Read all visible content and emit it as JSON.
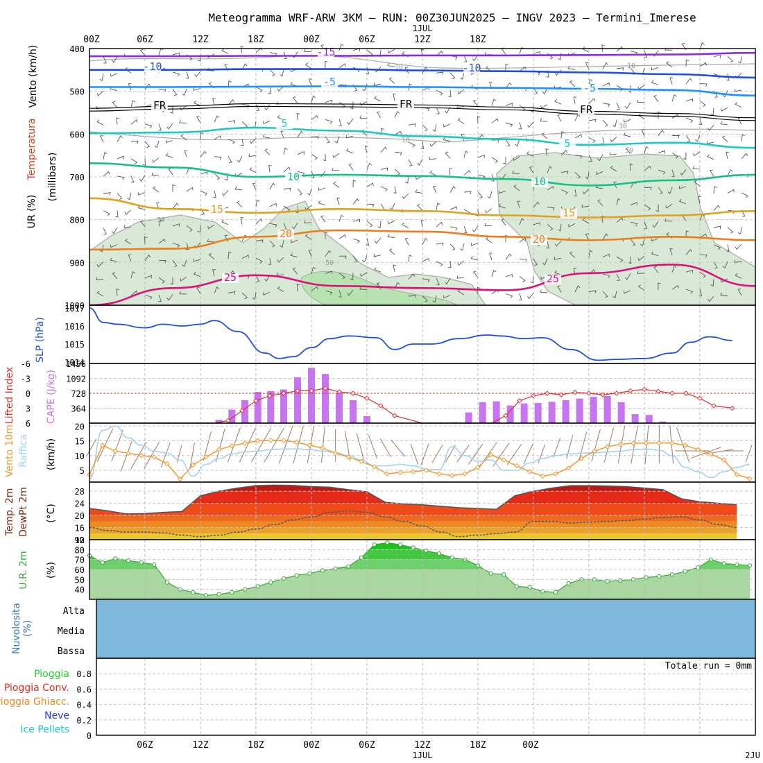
{
  "title": "Meteogramma WRF-ARW 3KM – RUN: 00Z30JUN2025 – INGV 2023 – Termini_Imerese",
  "colors": {
    "purple": "#8a2be2",
    "blue": "#1f4fe0",
    "skyblue": "#1e90ff",
    "cyan": "#1ec8c8",
    "teal": "#13c08a",
    "gold": "#e0a020",
    "orange": "#ee7d20",
    "magenta": "#e0107a",
    "rh_fill": "#d8ead6",
    "rh_fill_dark": "#b6e3b0",
    "cape": "#c674f0",
    "lifted": "#e03030",
    "gust": "#9fd3f0",
    "wind10": "#f29a2e",
    "arrow": "#a07a60",
    "cloud": "#80b8dc",
    "rh2m_light": "#9ad39a",
    "rh2m_dark": "#22cc22"
  },
  "chart_data": [
    {
      "type": "line",
      "panel": "upper-air",
      "ylabel_wind": "Vento (km/h)",
      "ylabel_temp": "Temperatura",
      "ylabel_rh": "UR (%)",
      "ylabel_units": "(millibars)",
      "ylim": [
        400,
        1000
      ],
      "yticks": [
        "400",
        "500",
        "600",
        "700",
        "800",
        "900",
        "1000"
      ],
      "x_hours": [
        0,
        72
      ],
      "xticks_top": [
        "00Z",
        "06Z",
        "12Z",
        "18Z",
        "00Z",
        "06Z",
        "12Z",
        "18Z"
      ],
      "day_label_top": "1JUL",
      "series": [
        {
          "name": "-15",
          "color": "purple",
          "x": [
            0,
            9,
            18,
            27,
            36,
            45,
            54,
            63,
            72
          ],
          "y": [
            418,
            418,
            417,
            417,
            416,
            416,
            415,
            414,
            410
          ]
        },
        {
          "name": "-10",
          "color": "blue",
          "x": [
            0,
            9,
            18,
            27,
            36,
            45,
            54,
            63,
            72
          ],
          "y": [
            450,
            450,
            448,
            448,
            451,
            453,
            456,
            460,
            468
          ]
        },
        {
          "name": "-5",
          "color": "skyblue",
          "x": [
            0,
            9,
            18,
            27,
            36,
            45,
            54,
            63,
            72
          ],
          "y": [
            490,
            490,
            489,
            488,
            490,
            492,
            494,
            497,
            510
          ]
        },
        {
          "name": "FR",
          "color": "black",
          "x": [
            0,
            9,
            18,
            27,
            36,
            45,
            54,
            63,
            72
          ],
          "y": [
            543,
            538,
            532,
            533,
            535,
            540,
            550,
            555,
            565
          ]
        },
        {
          "name": "5",
          "color": "cyan",
          "x": [
            0,
            9,
            18,
            27,
            36,
            45,
            54,
            63,
            72
          ],
          "y": [
            598,
            596,
            585,
            592,
            605,
            612,
            625,
            620,
            632
          ]
        },
        {
          "name": "10",
          "color": "teal",
          "x": [
            0,
            9,
            18,
            27,
            36,
            45,
            54,
            63,
            72
          ],
          "y": [
            668,
            678,
            700,
            695,
            698,
            705,
            720,
            708,
            695
          ]
        },
        {
          "name": "15",
          "color": "gold",
          "x": [
            0,
            9,
            18,
            27,
            36,
            45,
            54,
            63,
            72
          ],
          "y": [
            750,
            775,
            784,
            775,
            780,
            790,
            795,
            790,
            780
          ]
        },
        {
          "name": "20",
          "color": "orange",
          "x": [
            0,
            9,
            18,
            27,
            36,
            45,
            54,
            63,
            72
          ],
          "y": [
            870,
            868,
            840,
            825,
            828,
            840,
            848,
            840,
            848
          ]
        },
        {
          "name": "25",
          "color": "magenta",
          "x": [
            0,
            9,
            18,
            27,
            36,
            45,
            54,
            63,
            72
          ],
          "y": [
            1000,
            960,
            930,
            955,
            960,
            965,
            925,
            905,
            955
          ]
        }
      ],
      "contour_labels": [
        "-15",
        "-10",
        "-10",
        "-5",
        "-5",
        "FR",
        "FR",
        "FR",
        "5",
        "5",
        "10",
        "10",
        "15",
        "15",
        "20",
        "20",
        "25",
        "25"
      ],
      "rh_labels": [
        "10",
        "10",
        "10",
        "30",
        "30",
        "50",
        "50"
      ]
    },
    {
      "type": "line",
      "panel": "slp",
      "ylabel": "SLP (hPa)",
      "yticks": [
        "1014",
        "1015",
        "1016",
        "1017"
      ],
      "ylim": [
        1014,
        1017
      ],
      "x": [
        0,
        1.5,
        3,
        6,
        8,
        10,
        12,
        13.5,
        16,
        19,
        20.5,
        22,
        24,
        26,
        28,
        31,
        33,
        35,
        37,
        40,
        43,
        44.5,
        47,
        49,
        52,
        55,
        57,
        60,
        63,
        65,
        67,
        69.5
      ],
      "values": [
        1017.0,
        1016.2,
        1016.1,
        1015.9,
        1016.1,
        1016.0,
        1016.1,
        1016.3,
        1015.7,
        1014.5,
        1014.2,
        1014.3,
        1014.8,
        1015.3,
        1015.45,
        1015.35,
        1014.7,
        1015.0,
        1015.0,
        1015.3,
        1015.5,
        1015.45,
        1015.3,
        1015.35,
        1014.7,
        1014.1,
        1014.15,
        1014.2,
        1014.5,
        1015.1,
        1015.4,
        1015.2
      ]
    },
    {
      "type": "bar",
      "panel": "cape-lifted",
      "ylabel_li": "Lifted Index",
      "ylabel_cape": "CAPE (J/kg)",
      "li_ticks": [
        "-6",
        "-3",
        "0",
        "3",
        "6"
      ],
      "cape_ticks": [
        "1456",
        "1092",
        "728",
        "364"
      ],
      "cape_ylim": [
        0,
        1456
      ],
      "li_ylim": [
        -6,
        6
      ],
      "x": [
        0,
        3,
        6,
        9,
        12,
        13.5,
        15,
        16.5,
        18,
        19.5,
        21,
        22.5,
        24,
        25.5,
        27,
        28.5,
        30,
        31.5,
        33,
        34.5,
        36,
        37.5,
        39,
        40.5,
        42,
        43.5,
        45,
        46.5,
        48,
        49.5,
        51,
        52.5,
        54,
        55.5,
        57,
        58.5,
        60,
        61.5,
        63,
        64.5,
        66,
        67.5
      ],
      "cape": [
        0,
        0,
        0,
        0,
        0,
        0,
        0,
        0,
        0,
        0,
        0,
        0,
        0,
        0,
        0,
        0,
        0,
        0,
        0,
        0,
        0,
        0,
        0,
        0,
        0,
        0,
        0,
        250,
        510,
        530,
        430,
        480,
        490,
        520,
        560,
        600,
        640,
        660,
        510,
        220,
        200,
        40
      ],
      "cape_bars": {
        "x": [
          14,
          15.4,
          16.8,
          18.2,
          19.6,
          21,
          22.5,
          24,
          25.5,
          27,
          28.5,
          30,
          39.5,
          41,
          42.5,
          44,
          45.5,
          47,
          48.5,
          50,
          51.5,
          53,
          54.5,
          56,
          57.5,
          59,
          60.5,
          62
        ],
        "values": [
          80,
          330,
          560,
          760,
          780,
          820,
          1120,
          1350,
          1200,
          740,
          560,
          170,
          20,
          260,
          510,
          530,
          430,
          480,
          490,
          520,
          560,
          600,
          640,
          660,
          510,
          220,
          200,
          40
        ]
      },
      "lifted": {
        "x": [
          0,
          3,
          6,
          9,
          12,
          13.5,
          15,
          16.5,
          18,
          19.5,
          21,
          22.5,
          24,
          25.5,
          27,
          28.5,
          30,
          31.5,
          33,
          36,
          39,
          42,
          43.5,
          45,
          46.5,
          48,
          49.5,
          51,
          52.5,
          54,
          55.5,
          57,
          58.5,
          60,
          61.5,
          63,
          64.5,
          66,
          67.5,
          69.5
        ],
        "values": [
          6.0,
          6.0,
          6.5,
          7.0,
          7.0,
          6.5,
          5.5,
          3.5,
          1.5,
          0.5,
          0,
          -0.5,
          -0.5,
          -1.0,
          -0.3,
          0,
          1.0,
          2.5,
          4.5,
          7.0,
          8.0,
          8.0,
          7.0,
          4.5,
          1.5,
          0.5,
          0,
          0.3,
          -0.2,
          0,
          0.3,
          0,
          -0.5,
          -0.8,
          -0.4,
          0,
          0,
          1.0,
          2.5,
          3.0
        ]
      }
    },
    {
      "type": "line",
      "panel": "wind10",
      "ylabel_wind": "Vento 10m",
      "ylabel_gust": "Raffica",
      "ylabel_units": "(km/h)",
      "yticks": [
        "5",
        "10",
        "15",
        "20"
      ],
      "ylim": [
        1,
        21
      ],
      "x": [
        0,
        1.4,
        2.8,
        4.2,
        5.6,
        7,
        8.4,
        9.8,
        11.2,
        12.6,
        14,
        15.4,
        16.8,
        18.2,
        19.6,
        21,
        22.4,
        23.8,
        25.2,
        26.6,
        28,
        29.4,
        30.8,
        32.2,
        33.6,
        35,
        36.4,
        37.8,
        39.2,
        40.6,
        42,
        43.4,
        44.8,
        46.2,
        47.6,
        49,
        50.4,
        51.8,
        53.2,
        54.6,
        56,
        57.4,
        58.8,
        60.2,
        61.6,
        63,
        64.4,
        65.8,
        67.2,
        68.6,
        70,
        71.4
      ],
      "wind10": [
        3.5,
        13.5,
        11.5,
        10.8,
        10.0,
        9.5,
        7.2,
        2.0,
        6.8,
        9.5,
        12.0,
        13.3,
        14.2,
        15.0,
        15.2,
        15.1,
        14.5,
        13.5,
        12.5,
        10.8,
        9.5,
        8.0,
        6.2,
        3.8,
        4.3,
        4.5,
        5.0,
        3.8,
        3.2,
        3.8,
        6.0,
        10.3,
        8.5,
        6.5,
        4.5,
        3.0,
        3.8,
        5.8,
        9.0,
        11.5,
        13.0,
        13.8,
        14.2,
        14.2,
        14.3,
        14.2,
        13.5,
        12.0,
        10.5,
        8.5,
        3.5,
        2.2
      ],
      "gust": [
        2.0,
        18.5,
        20.0,
        16.0,
        13.5,
        11.5,
        10.8,
        8.5,
        3.0,
        7.0,
        9.0,
        10.5,
        11.2,
        11.5,
        12.0,
        12.2,
        12.3,
        12.0,
        11.5,
        11.0,
        10.0,
        8.5,
        6.5,
        6.5,
        7.0,
        6.5,
        5.3,
        5.2,
        13.0,
        10.0,
        8.0,
        8.5,
        5.0,
        5.0,
        7.5,
        9.0,
        10.0,
        10.5,
        10.8,
        11.0,
        11.2,
        11.5,
        12.0,
        12.2,
        11.8,
        10.0,
        6.0,
        4.5,
        2.5,
        4.5,
        6.0,
        7.0
      ],
      "arrow_dirs": [
        30,
        25,
        20,
        200,
        210,
        210,
        200,
        195,
        190,
        15,
        15,
        20,
        25,
        30,
        30,
        20,
        15,
        10,
        5,
        0,
        350,
        345,
        340,
        330,
        320,
        160,
        200,
        210,
        210,
        215,
        215,
        215,
        215,
        215,
        205,
        200,
        20,
        15,
        15,
        15,
        15,
        10,
        10,
        5,
        0,
        355,
        340,
        270,
        250,
        260,
        270,
        200
      ]
    },
    {
      "type": "area",
      "panel": "temp-dewpoint",
      "ylabel_temp": "Temp. 2m",
      "ylabel_dewpt": "DewPt 2m",
      "ylabel_units": "(°C)",
      "yticks": [
        "12",
        "16",
        "20",
        "24",
        "28"
      ],
      "ylim": [
        12,
        31
      ],
      "x": [
        0,
        2,
        4,
        6,
        8,
        10,
        12,
        14,
        16,
        18,
        20,
        22,
        24,
        26,
        28,
        30,
        32,
        34,
        36,
        38,
        40,
        42,
        44,
        46,
        48,
        50,
        52,
        54,
        56,
        58,
        60,
        62,
        64,
        66,
        68,
        70
      ],
      "temp2m": [
        22.3,
        21.5,
        20.5,
        20.6,
        21.0,
        21.3,
        26.5,
        28.0,
        29.0,
        29.8,
        30.0,
        29.9,
        29.5,
        29.3,
        28.5,
        27.8,
        24.3,
        23.8,
        23.5,
        23.0,
        22.5,
        22.3,
        22.0,
        26.5,
        28.0,
        29.0,
        29.8,
        29.8,
        29.7,
        29.5,
        29.0,
        28.5,
        25.5,
        24.5,
        24.0,
        23.5
      ],
      "dewpt2m": [
        16.0,
        15.0,
        14.5,
        14.5,
        14.2,
        13.5,
        13.0,
        13.5,
        14.5,
        15.5,
        17.0,
        18.5,
        19.5,
        21.0,
        21.5,
        21.0,
        19.5,
        18.0,
        16.5,
        14.5,
        13.0,
        13.5,
        14.0,
        14.5,
        18.0,
        18.0,
        17.5,
        17.8,
        18.0,
        18.3,
        18.8,
        19.3,
        19.5,
        18.5,
        17.0,
        16.0
      ]
    },
    {
      "type": "area",
      "panel": "rh2m",
      "ylabel": "U.R. 2m",
      "ylabel_units": "(%)",
      "yticks": [
        "40",
        "50",
        "60",
        "70",
        "80",
        "90"
      ],
      "ylim": [
        30,
        90
      ],
      "x": [
        0,
        1.4,
        2.8,
        4.2,
        5.6,
        7,
        8.4,
        9.8,
        11.2,
        12.6,
        14,
        15.4,
        16.8,
        18.2,
        19.6,
        21,
        22.4,
        23.8,
        25.2,
        26.6,
        28,
        29.4,
        30.8,
        32.2,
        33.6,
        35,
        36.4,
        37.8,
        39.2,
        40.6,
        42,
        43.4,
        44.8,
        46.2,
        47.6,
        49,
        50.4,
        51.8,
        53.2,
        54.6,
        56,
        57.4,
        58.8,
        60.2,
        61.6,
        63,
        64.4,
        65.8,
        67.2,
        68.6,
        70,
        71.4
      ],
      "values": [
        74,
        67,
        71,
        69,
        67,
        65,
        47,
        40,
        37,
        34,
        35,
        37,
        40,
        43,
        47,
        51,
        54,
        56,
        59,
        61,
        63,
        72,
        85,
        87,
        85,
        82,
        79,
        76,
        72,
        70,
        64,
        56,
        55,
        43,
        42,
        38,
        37,
        46,
        50,
        50,
        48,
        49,
        50,
        52,
        53,
        55,
        58,
        62,
        70,
        66,
        65,
        64
      ]
    },
    {
      "type": "heatmap",
      "panel": "clouds",
      "ylabel": "Nuvolosita (%)",
      "rows": [
        "Alta",
        "Media",
        "Bassa"
      ],
      "values": [
        [
          0
        ],
        [
          0
        ],
        [
          0
        ]
      ]
    },
    {
      "type": "line",
      "panel": "precipitation",
      "legend": [
        {
          "name": "Pioggia",
          "color": "#22cc22"
        },
        {
          "name": "Pioggia Conv.",
          "color": "#ee2a1a"
        },
        {
          "name": "Pioggia Ghiacc.",
          "color": "#ee8a1a"
        },
        {
          "name": "Neve",
          "color": "#2a3aee"
        },
        {
          "name": "Ice Pellets",
          "color": "#18c6d8"
        }
      ],
      "yticks": [
        "0",
        "0.2",
        "0.4",
        "0.6",
        "0.8"
      ],
      "ylim": [
        0,
        1
      ],
      "total_text": "Totale run = 0mm",
      "xticks_bottom": [
        "06Z",
        "12Z",
        "18Z",
        "00Z",
        "06Z",
        "12Z",
        "18Z",
        "00Z"
      ],
      "day_labels_bottom": [
        "1JUL",
        "2JU"
      ],
      "values": []
    }
  ]
}
